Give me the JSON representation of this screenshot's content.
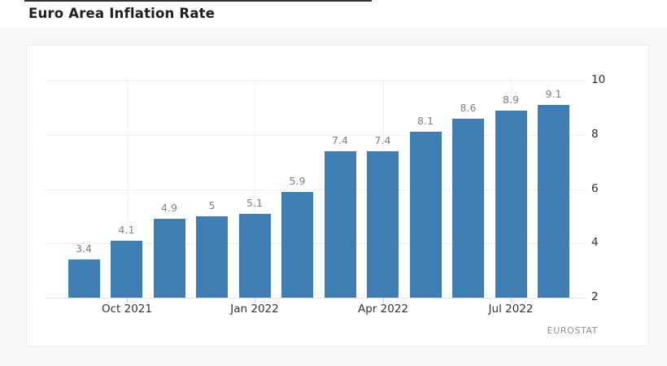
{
  "page": {
    "title": "Euro Area Inflation Rate",
    "background_color": "#f7f7f7",
    "header_background": "#ffffff",
    "top_accent_color": "#343434"
  },
  "chart_data": {
    "type": "bar",
    "title": "Euro Area Inflation Rate",
    "categories": [
      "Sep 2021",
      "Oct 2021",
      "Nov 2021",
      "Dec 2021",
      "Jan 2022",
      "Feb 2022",
      "Mar 2022",
      "Apr 2022",
      "May 2022",
      "Jun 2022",
      "Jul 2022",
      "Aug 2022"
    ],
    "values": [
      3.4,
      4.1,
      4.9,
      5,
      5.1,
      5.9,
      7.4,
      7.4,
      8.1,
      8.6,
      8.9,
      9.1
    ],
    "bar_labels": [
      "3.4",
      "4.1",
      "4.9",
      "5",
      "5.1",
      "5.9",
      "7.4",
      "7.4",
      "8.1",
      "8.6",
      "8.9",
      "9.1"
    ],
    "x_tick_labels": [
      {
        "label": "Oct 2021",
        "index": 1
      },
      {
        "label": "Jan 2022",
        "index": 4
      },
      {
        "label": "Apr 2022",
        "index": 7
      },
      {
        "label": "Jul 2022",
        "index": 10
      }
    ],
    "y_ticks": [
      2,
      4,
      6,
      8,
      10
    ],
    "ylim": [
      2,
      10
    ],
    "xlabel": "",
    "ylabel": "",
    "grid": true,
    "legend_position": "none",
    "bar_color": "#3f7db5",
    "grid_color": "#ececec",
    "source": "EUROSTAT"
  }
}
